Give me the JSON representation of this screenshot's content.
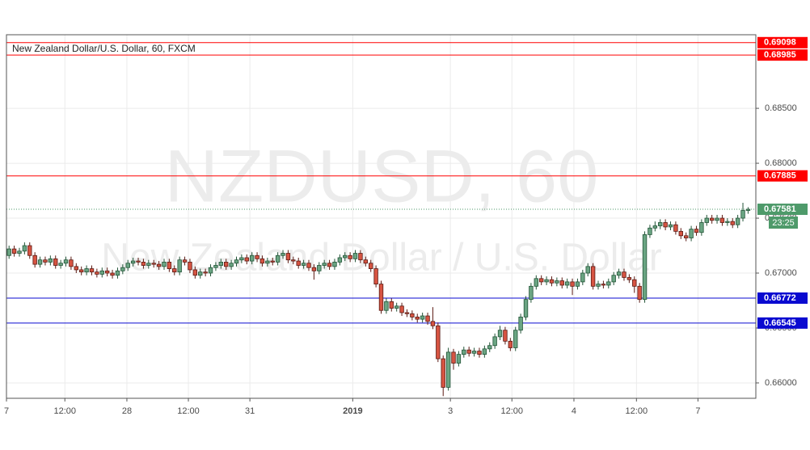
{
  "chart_data": {
    "type": "candlestick",
    "legend": "New Zealand Dollar/U.S. Dollar, 60, FXCM",
    "watermark": "NZDUSD, 60",
    "watermark_subtitle": "New Zealand Dollar / U.S. Dollar",
    "up_color": "#6ba583",
    "down_color": "#d75442",
    "grid": true,
    "xlim": [
      0,
      145
    ],
    "xticks": [
      {
        "value": 0,
        "label": "7"
      },
      {
        "value": 11.3,
        "label": "12:00"
      },
      {
        "value": 23.3,
        "label": "28"
      },
      {
        "value": 35.2,
        "label": "12:00"
      },
      {
        "value": 47.1,
        "label": "31"
      },
      {
        "value": 67,
        "label": "2019",
        "bold": true
      },
      {
        "value": 85.9,
        "label": "3"
      },
      {
        "value": 97.8,
        "label": "12:00"
      },
      {
        "value": 109.8,
        "label": "4"
      },
      {
        "value": 121.9,
        "label": "12:00"
      },
      {
        "value": 133.8,
        "label": "7"
      }
    ],
    "ylim": [
      0.6586,
      0.6917
    ],
    "yticks": [
      {
        "value": 0.66,
        "label": "0.66000"
      },
      {
        "value": 0.665,
        "label": "0.66500"
      },
      {
        "value": 0.67,
        "label": "0.67000"
      },
      {
        "value": 0.675,
        "label": "0.67500"
      },
      {
        "value": 0.68,
        "label": "0.68000"
      },
      {
        "value": 0.685,
        "label": "0.68500"
      }
    ],
    "levels": [
      {
        "value": 0.69098,
        "color": "#ff0000"
      },
      {
        "value": 0.68985,
        "color": "#ff0000"
      },
      {
        "value": 0.67885,
        "color": "#ff0000"
      },
      {
        "value": 0.66772,
        "color": "#0a0ad0"
      },
      {
        "value": 0.66545,
        "color": "#0a0ad0"
      }
    ],
    "last_price": 0.67581,
    "last_price_color": "#4e9a6a",
    "countdown": "23:25",
    "candles": [
      [
        0.6716,
        0.6725,
        0.6713,
        0.6722
      ],
      [
        0.6722,
        0.6725,
        0.6715,
        0.6718
      ],
      [
        0.6718,
        0.6723,
        0.6715,
        0.672
      ],
      [
        0.672,
        0.6728,
        0.6717,
        0.6725
      ],
      [
        0.6725,
        0.6728,
        0.6713,
        0.6716
      ],
      [
        0.6716,
        0.6719,
        0.6705,
        0.6708
      ],
      [
        0.6708,
        0.6715,
        0.6705,
        0.6712
      ],
      [
        0.6712,
        0.6715,
        0.6707,
        0.671
      ],
      [
        0.671,
        0.6716,
        0.6707,
        0.6713
      ],
      [
        0.6713,
        0.6716,
        0.6704,
        0.6707
      ],
      [
        0.6707,
        0.6712,
        0.6704,
        0.6709
      ],
      [
        0.6709,
        0.6715,
        0.6706,
        0.6712
      ],
      [
        0.6712,
        0.6715,
        0.6703,
        0.6706
      ],
      [
        0.6706,
        0.6709,
        0.67,
        0.6703
      ],
      [
        0.6703,
        0.6706,
        0.6698,
        0.6701
      ],
      [
        0.6701,
        0.6707,
        0.6698,
        0.6704
      ],
      [
        0.6704,
        0.6707,
        0.6698,
        0.6701
      ],
      [
        0.6701,
        0.6704,
        0.6696,
        0.6699
      ],
      [
        0.6699,
        0.6705,
        0.6696,
        0.6702
      ],
      [
        0.6702,
        0.6705,
        0.6697,
        0.67
      ],
      [
        0.67,
        0.6703,
        0.6695,
        0.6698
      ],
      [
        0.6698,
        0.6705,
        0.6695,
        0.6702
      ],
      [
        0.6702,
        0.6708,
        0.6699,
        0.6705
      ],
      [
        0.6705,
        0.6712,
        0.6702,
        0.6709
      ],
      [
        0.6709,
        0.6714,
        0.6706,
        0.6711
      ],
      [
        0.6711,
        0.6714,
        0.6707,
        0.671
      ],
      [
        0.671,
        0.6713,
        0.6704,
        0.6707
      ],
      [
        0.6707,
        0.6712,
        0.6704,
        0.6709
      ],
      [
        0.6709,
        0.6712,
        0.6705,
        0.6708
      ],
      [
        0.6708,
        0.6711,
        0.6703,
        0.6706
      ],
      [
        0.6706,
        0.6713,
        0.6703,
        0.671
      ],
      [
        0.671,
        0.6713,
        0.6701,
        0.6704
      ],
      [
        0.6704,
        0.6707,
        0.6698,
        0.6701
      ],
      [
        0.6701,
        0.6715,
        0.6698,
        0.6712
      ],
      [
        0.6712,
        0.6715,
        0.6707,
        0.671
      ],
      [
        0.671,
        0.6713,
        0.67,
        0.6703
      ],
      [
        0.6703,
        0.6706,
        0.6695,
        0.6698
      ],
      [
        0.6698,
        0.6704,
        0.6695,
        0.6701
      ],
      [
        0.6701,
        0.6704,
        0.6697,
        0.67
      ],
      [
        0.67,
        0.6708,
        0.6697,
        0.6705
      ],
      [
        0.6705,
        0.671,
        0.6702,
        0.6707
      ],
      [
        0.6707,
        0.6713,
        0.6704,
        0.671
      ],
      [
        0.671,
        0.6713,
        0.6703,
        0.6706
      ],
      [
        0.6706,
        0.6712,
        0.6703,
        0.6709
      ],
      [
        0.6709,
        0.6715,
        0.6706,
        0.6712
      ],
      [
        0.6712,
        0.6717,
        0.6709,
        0.6714
      ],
      [
        0.6714,
        0.6717,
        0.6708,
        0.6711
      ],
      [
        0.6711,
        0.6719,
        0.6708,
        0.6716
      ],
      [
        0.6716,
        0.6719,
        0.671,
        0.6713
      ],
      [
        0.6713,
        0.6716,
        0.6706,
        0.6709
      ],
      [
        0.6709,
        0.6714,
        0.6706,
        0.6711
      ],
      [
        0.6711,
        0.6714,
        0.6707,
        0.671
      ],
      [
        0.671,
        0.6719,
        0.6707,
        0.6716
      ],
      [
        0.6716,
        0.6721,
        0.6713,
        0.6718
      ],
      [
        0.6718,
        0.6721,
        0.6709,
        0.6712
      ],
      [
        0.6712,
        0.6715,
        0.6708,
        0.6711
      ],
      [
        0.6711,
        0.6714,
        0.6704,
        0.6707
      ],
      [
        0.6707,
        0.6712,
        0.6704,
        0.6709
      ],
      [
        0.6709,
        0.6712,
        0.6702,
        0.6705
      ],
      [
        0.6705,
        0.6708,
        0.6694,
        0.6702
      ],
      [
        0.6702,
        0.671,
        0.6699,
        0.6707
      ],
      [
        0.6707,
        0.6712,
        0.6704,
        0.6709
      ],
      [
        0.6709,
        0.6712,
        0.6703,
        0.6706
      ],
      [
        0.6706,
        0.6713,
        0.6703,
        0.671
      ],
      [
        0.671,
        0.6717,
        0.6707,
        0.6714
      ],
      [
        0.6714,
        0.6719,
        0.6711,
        0.6716
      ],
      [
        0.6716,
        0.6719,
        0.671,
        0.6713
      ],
      [
        0.6713,
        0.6721,
        0.671,
        0.6718
      ],
      [
        0.6718,
        0.6721,
        0.6709,
        0.6712
      ],
      [
        0.6712,
        0.6715,
        0.6706,
        0.6709
      ],
      [
        0.6709,
        0.6712,
        0.6701,
        0.6704
      ],
      [
        0.6704,
        0.6707,
        0.6687,
        0.669
      ],
      [
        0.669,
        0.6693,
        0.6663,
        0.6666
      ],
      [
        0.6666,
        0.6677,
        0.6663,
        0.6674
      ],
      [
        0.6674,
        0.6677,
        0.6665,
        0.6668
      ],
      [
        0.6668,
        0.6673,
        0.6665,
        0.667
      ],
      [
        0.667,
        0.6673,
        0.6661,
        0.6664
      ],
      [
        0.6664,
        0.6667,
        0.666,
        0.6663
      ],
      [
        0.6663,
        0.6666,
        0.6657,
        0.666
      ],
      [
        0.666,
        0.6663,
        0.6655,
        0.6658
      ],
      [
        0.6658,
        0.6664,
        0.6655,
        0.6661
      ],
      [
        0.6661,
        0.6664,
        0.6653,
        0.6656
      ],
      [
        0.6656,
        0.6669,
        0.6649,
        0.6652
      ],
      [
        0.6652,
        0.6655,
        0.6619,
        0.6622
      ],
      [
        0.6622,
        0.6625,
        0.6588,
        0.6596
      ],
      [
        0.6596,
        0.6632,
        0.6593,
        0.6628
      ],
      [
        0.6628,
        0.6631,
        0.6612,
        0.6618
      ],
      [
        0.6618,
        0.6629,
        0.6615,
        0.6626
      ],
      [
        0.6626,
        0.6633,
        0.6623,
        0.663
      ],
      [
        0.663,
        0.6633,
        0.6624,
        0.6627
      ],
      [
        0.6627,
        0.6632,
        0.6624,
        0.6629
      ],
      [
        0.6629,
        0.6632,
        0.6623,
        0.6626
      ],
      [
        0.6626,
        0.6634,
        0.6623,
        0.6631
      ],
      [
        0.6631,
        0.6637,
        0.6628,
        0.6634
      ],
      [
        0.6634,
        0.6645,
        0.6631,
        0.6642
      ],
      [
        0.6642,
        0.6652,
        0.6639,
        0.6648
      ],
      [
        0.6648,
        0.6651,
        0.6635,
        0.6638
      ],
      [
        0.6638,
        0.6641,
        0.6629,
        0.6632
      ],
      [
        0.6632,
        0.6651,
        0.6629,
        0.6648
      ],
      [
        0.6648,
        0.6663,
        0.6645,
        0.666
      ],
      [
        0.666,
        0.6679,
        0.6657,
        0.6676
      ],
      [
        0.6676,
        0.6691,
        0.6673,
        0.6688
      ],
      [
        0.6688,
        0.6698,
        0.6685,
        0.6695
      ],
      [
        0.6695,
        0.6698,
        0.6689,
        0.6692
      ],
      [
        0.6692,
        0.6697,
        0.6689,
        0.6694
      ],
      [
        0.6694,
        0.6697,
        0.6688,
        0.6691
      ],
      [
        0.6691,
        0.6696,
        0.6688,
        0.6693
      ],
      [
        0.6693,
        0.6696,
        0.6686,
        0.6689
      ],
      [
        0.6689,
        0.6695,
        0.6686,
        0.6692
      ],
      [
        0.6692,
        0.6695,
        0.668,
        0.6688
      ],
      [
        0.6688,
        0.6695,
        0.6685,
        0.6692
      ],
      [
        0.6692,
        0.6703,
        0.6689,
        0.67
      ],
      [
        0.67,
        0.6709,
        0.6697,
        0.6706
      ],
      [
        0.6706,
        0.6709,
        0.6685,
        0.6688
      ],
      [
        0.6688,
        0.6693,
        0.6685,
        0.669
      ],
      [
        0.669,
        0.6693,
        0.6686,
        0.6689
      ],
      [
        0.6689,
        0.6695,
        0.6686,
        0.6692
      ],
      [
        0.6692,
        0.6701,
        0.6689,
        0.6698
      ],
      [
        0.6698,
        0.6704,
        0.6695,
        0.6701
      ],
      [
        0.6701,
        0.6704,
        0.6693,
        0.6696
      ],
      [
        0.6696,
        0.6699,
        0.6691,
        0.6694
      ],
      [
        0.6694,
        0.6697,
        0.6682,
        0.6688
      ],
      [
        0.6688,
        0.6691,
        0.6673,
        0.6676
      ],
      [
        0.6676,
        0.6738,
        0.6673,
        0.6735
      ],
      [
        0.6735,
        0.6744,
        0.6732,
        0.6741
      ],
      [
        0.6741,
        0.6747,
        0.6738,
        0.6743
      ],
      [
        0.6743,
        0.6749,
        0.674,
        0.6746
      ],
      [
        0.6746,
        0.6749,
        0.6739,
        0.6742
      ],
      [
        0.6742,
        0.6747,
        0.6739,
        0.6744
      ],
      [
        0.6744,
        0.6747,
        0.6735,
        0.6738
      ],
      [
        0.6738,
        0.6741,
        0.6731,
        0.6734
      ],
      [
        0.6734,
        0.6737,
        0.6729,
        0.6732
      ],
      [
        0.6732,
        0.6743,
        0.6729,
        0.674
      ],
      [
        0.674,
        0.6743,
        0.6734,
        0.6737
      ],
      [
        0.6737,
        0.6749,
        0.6734,
        0.6746
      ],
      [
        0.6746,
        0.6753,
        0.6743,
        0.675
      ],
      [
        0.675,
        0.6753,
        0.6745,
        0.6748
      ],
      [
        0.6748,
        0.6753,
        0.6745,
        0.675
      ],
      [
        0.675,
        0.6753,
        0.6743,
        0.6746
      ],
      [
        0.6746,
        0.675,
        0.6743,
        0.6747
      ],
      [
        0.6747,
        0.675,
        0.6741,
        0.6744
      ],
      [
        0.6744,
        0.6753,
        0.6741,
        0.675
      ],
      [
        0.675,
        0.6764,
        0.6747,
        0.6757
      ],
      [
        0.6757,
        0.676,
        0.6754,
        0.67581
      ]
    ]
  }
}
